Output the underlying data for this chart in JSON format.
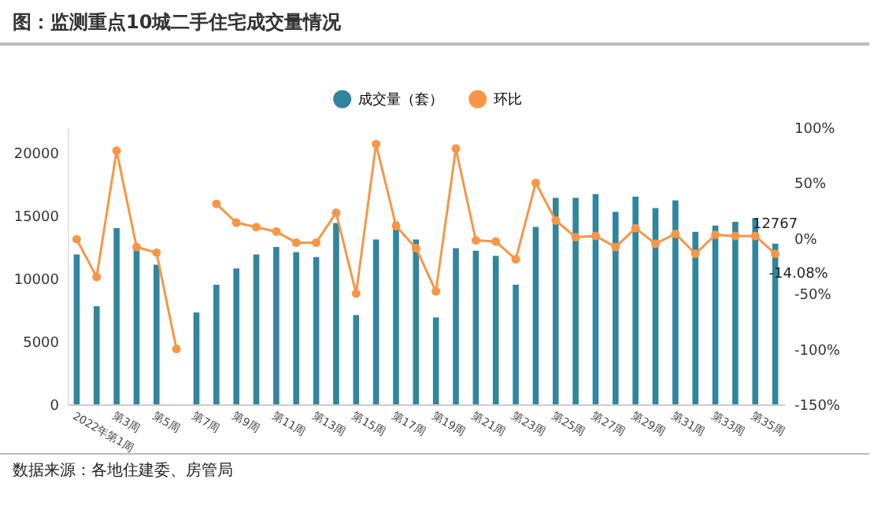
{
  "chart_data": {
    "type": "bar",
    "title": "图：监测重点10城二手住宅成交量情况",
    "categories": [
      "2022年第1周",
      null,
      "第3周",
      null,
      "第5周",
      null,
      "第7周",
      null,
      "第9周",
      null,
      "第11周",
      null,
      "第13周",
      null,
      "第15周",
      null,
      "第17周",
      null,
      "第19周",
      null,
      "第21周",
      null,
      "第23周",
      null,
      "第25周",
      null,
      "第27周",
      null,
      "第29周",
      null,
      "第31周",
      null,
      "第33周",
      null,
      "第35周",
      null
    ],
    "series": [
      {
        "name": "成交量（套）",
        "color": "#31859c",
        "values": [
          11900,
          7800,
          14000,
          12500,
          11100,
          0,
          7300,
          9500,
          10800,
          11900,
          12500,
          12100,
          11700,
          14400,
          7100,
          13100,
          14500,
          13100,
          6900,
          12400,
          12200,
          11800,
          9500,
          14100,
          16400,
          16400,
          16700,
          15300,
          16500,
          15600,
          16200,
          13700,
          14200,
          14500,
          14800,
          12767
        ],
        "value_labels": [
          null,
          null,
          null,
          null,
          null,
          null,
          null,
          null,
          null,
          null,
          null,
          null,
          null,
          null,
          null,
          null,
          null,
          null,
          null,
          null,
          null,
          null,
          null,
          null,
          null,
          null,
          null,
          null,
          null,
          null,
          null,
          null,
          null,
          null,
          null,
          "12767"
        ]
      },
      {
        "name": "环比",
        "type": "line",
        "axis": "y2",
        "color": "#f79646",
        "values": [
          -1,
          -35,
          79,
          -8,
          -13,
          -100,
          null,
          31,
          14,
          10,
          6,
          -4,
          -4,
          23,
          -50,
          85,
          11,
          -9,
          -48,
          81,
          -2,
          -3,
          -19,
          50,
          16,
          1,
          2,
          -8,
          9,
          -5,
          4,
          -14,
          3,
          2,
          2,
          -14.08
        ],
        "value_labels": [
          null,
          null,
          null,
          null,
          null,
          null,
          null,
          null,
          null,
          null,
          null,
          null,
          null,
          null,
          null,
          null,
          null,
          null,
          null,
          null,
          null,
          null,
          null,
          null,
          null,
          null,
          null,
          null,
          null,
          null,
          null,
          null,
          null,
          null,
          null,
          "-14.08%"
        ]
      }
    ],
    "ylim": [
      0,
      22000
    ],
    "yticks": [
      0,
      5000,
      10000,
      15000,
      20000
    ],
    "y2lim": [
      -150,
      100
    ],
    "y2ticks": [
      {
        "value": -150,
        "label": "-150%"
      },
      {
        "value": -100,
        "label": "-100%"
      },
      {
        "value": -50,
        "label": "-50%"
      },
      {
        "value": 0,
        "label": "0%"
      },
      {
        "value": 50,
        "label": "50%"
      },
      {
        "value": 100,
        "label": "100%"
      }
    ],
    "marker": "circle",
    "legend": "top right",
    "annotations": [
      "数据来源：各地住建委、房管局"
    ]
  }
}
